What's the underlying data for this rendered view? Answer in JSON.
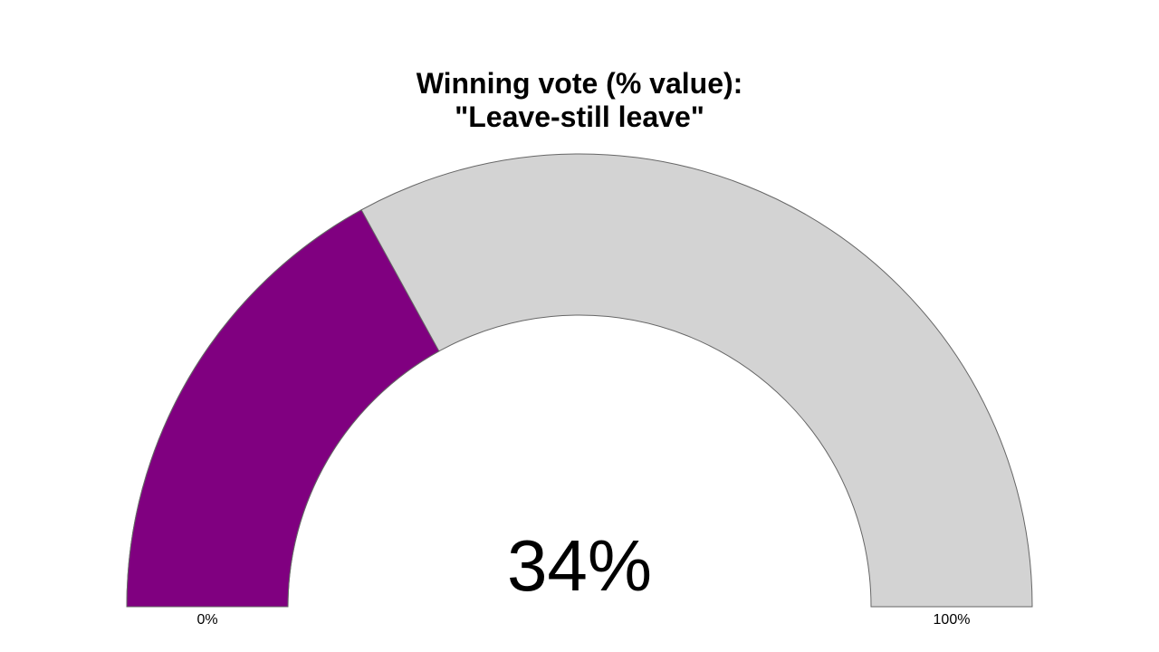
{
  "chart_data": {
    "type": "gauge",
    "title": [
      "Winning vote (% value):",
      "\"Leave-still leave\""
    ],
    "value": 34,
    "value_label": "34%",
    "color": "#800080",
    "track_color": "#d3d3d3",
    "ylim": [
      0,
      100
    ],
    "yticks": [
      {
        "value": 0,
        "label": "0%"
      },
      {
        "value": 100,
        "label": "100%"
      }
    ]
  }
}
